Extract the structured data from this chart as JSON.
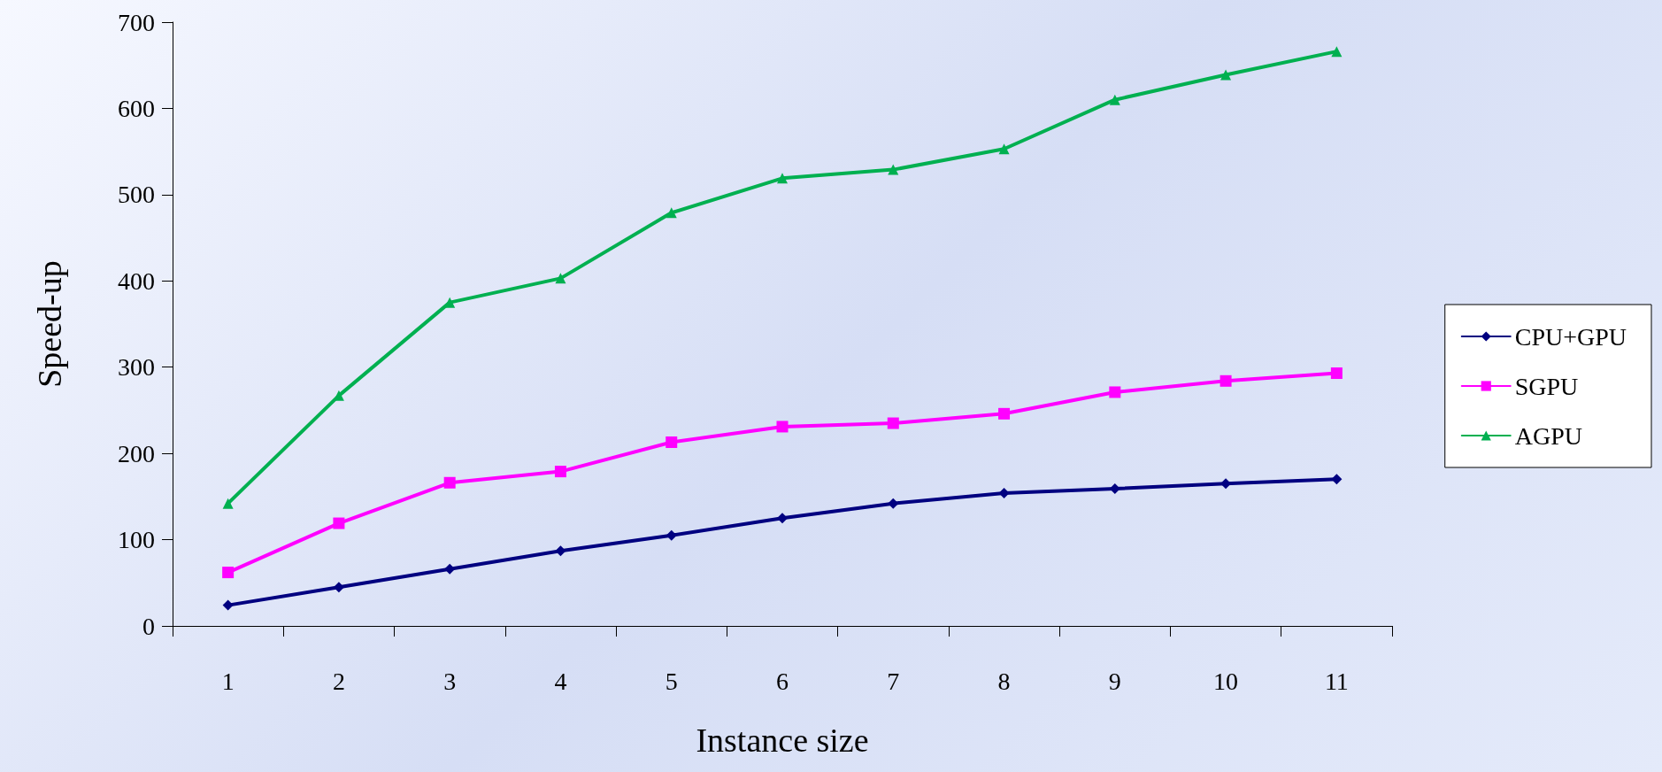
{
  "chart_data": {
    "type": "line",
    "xlabel": "Instance size",
    "ylabel": "Speed-up",
    "categories": [
      "1",
      "2",
      "3",
      "4",
      "5",
      "6",
      "7",
      "8",
      "9",
      "10",
      "11"
    ],
    "series": [
      {
        "name": "CPU+GPU",
        "color": "#000080",
        "marker": "diamond",
        "values": [
          24,
          45,
          66,
          87,
          105,
          125,
          142,
          154,
          159,
          165,
          170
        ]
      },
      {
        "name": "SGPU",
        "color": "#ff00ff",
        "marker": "square",
        "values": [
          62,
          119,
          166,
          179,
          213,
          231,
          235,
          246,
          271,
          284,
          293
        ]
      },
      {
        "name": "AGPU",
        "color": "#00b050",
        "marker": "triangle",
        "values": [
          142,
          267,
          375,
          403,
          479,
          519,
          529,
          553,
          610,
          639,
          666
        ]
      }
    ],
    "ylim": [
      0,
      700
    ],
    "yticks": [
      0,
      100,
      200,
      300,
      400,
      500,
      600,
      700
    ],
    "grid": false,
    "legend": "right",
    "line_style": "solid"
  }
}
